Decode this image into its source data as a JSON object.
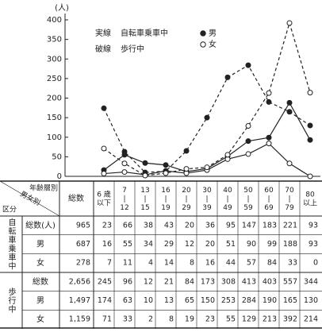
{
  "chart_data": {
    "type": "line",
    "y_label": "(人)",
    "categories": [
      "6 歳\n以下",
      "7\n|\n12",
      "13\n|\n15",
      "16\n|\n19",
      "20\n|\n29",
      "30\n|\n39",
      "40\n|\n49",
      "50\n|\n59",
      "60\n|\n69",
      "70\n|\n79",
      "80\n以上"
    ],
    "ylim": [
      0,
      400
    ],
    "yticks": [
      0,
      50,
      100,
      150,
      200,
      250,
      300,
      350,
      400
    ],
    "legend": {
      "solid": "実線",
      "solid_label": "自転車乗車中",
      "dashed": "破線",
      "dashed_label": "歩行中",
      "male": "男",
      "female": "女"
    },
    "series": [
      {
        "style": "solid",
        "marker": "filled",
        "color": "#222",
        "values": [
          16,
          55,
          34,
          29,
          12,
          20,
          51,
          90,
          99,
          188,
          93
        ]
      },
      {
        "style": "solid",
        "marker": "open",
        "color": "#222",
        "values": [
          7,
          11,
          4,
          14,
          8,
          16,
          44,
          57,
          84,
          33,
          0
        ]
      },
      {
        "style": "dashed",
        "marker": "filled",
        "color": "#222",
        "values": [
          174,
          63,
          10,
          13,
          65,
          150,
          253,
          284,
          190,
          165,
          130
        ]
      },
      {
        "style": "dashed",
        "marker": "open",
        "color": "#222",
        "values": [
          71,
          33,
          2,
          8,
          19,
          23,
          55,
          129,
          213,
          392,
          214
        ]
      }
    ]
  },
  "table": {
    "corner": [
      "年齢層別",
      "男女別",
      "区分"
    ],
    "total_header": "総数",
    "groups": [
      {
        "label": "自転車乗車中",
        "rows": [
          {
            "label": "総数(人)",
            "cells": [
              965,
              23,
              66,
              38,
              43,
              20,
              36,
              95,
              147,
              183,
              221,
              93
            ]
          },
          {
            "label": "男",
            "cells": [
              687,
              16,
              55,
              34,
              29,
              12,
              20,
              51,
              90,
              99,
              188,
              93
            ]
          },
          {
            "label": "女",
            "cells": [
              278,
              7,
              11,
              4,
              14,
              8,
              16,
              44,
              57,
              84,
              33,
              0
            ]
          }
        ]
      },
      {
        "label": "歩行中",
        "rows": [
          {
            "label": "総数",
            "cells": [
              "2,656",
              245,
              96,
              12,
              21,
              84,
              173,
              308,
              413,
              403,
              557,
              344
            ]
          },
          {
            "label": "男",
            "cells": [
              "1,497",
              174,
              63,
              10,
              13,
              65,
              150,
              253,
              284,
              190,
              165,
              130
            ]
          },
          {
            "label": "女",
            "cells": [
              "1,159",
              71,
              33,
              2,
              8,
              19,
              23,
              55,
              129,
              213,
              392,
              214
            ]
          }
        ]
      }
    ]
  }
}
